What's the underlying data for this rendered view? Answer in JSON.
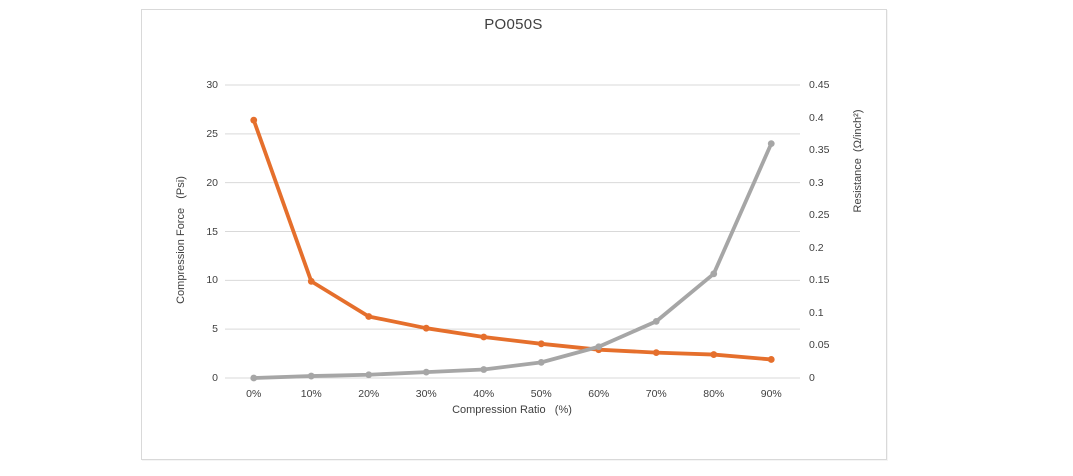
{
  "page": {
    "background": "#FFFFFF"
  },
  "frame": {
    "border_color": "#D9D9D9",
    "background": "#FFFFFF"
  },
  "chart_data": {
    "type": "line",
    "title": "PO050S",
    "categories": [
      "0%",
      "10%",
      "20%",
      "30%",
      "40%",
      "50%",
      "60%",
      "70%",
      "80%",
      "90%"
    ],
    "xlabel": "Compression Ratio   (%)",
    "axes": {
      "left": {
        "label": "Compression Force   (Psi)",
        "min": 0,
        "max": 30,
        "ticks": [
          "0",
          "5",
          "10",
          "15",
          "20",
          "25",
          "30"
        ],
        "tick_values": [
          0,
          5,
          10,
          15,
          20,
          25,
          30
        ]
      },
      "right": {
        "label": "Resistance  (Ω/inch²)",
        "min": 0,
        "max": 0.45,
        "ticks": [
          "0",
          "0.05",
          "0.1",
          "0.15",
          "0.2",
          "0.25",
          "0.3",
          "0.35",
          "0.4",
          "0.45"
        ],
        "tick_values": [
          0,
          0.05,
          0.1,
          0.15,
          0.2,
          0.25,
          0.3,
          0.35,
          0.4,
          0.45
        ]
      }
    },
    "grid": true,
    "legend": false,
    "series": [
      {
        "name": "Compression Force (Psi)",
        "axis": "left",
        "color": "#E56F2C",
        "marker": "circle",
        "values": [
          26.4,
          9.9,
          6.3,
          5.1,
          4.2,
          3.5,
          2.9,
          2.6,
          2.4,
          1.9
        ]
      },
      {
        "name": "Resistance (Ω/inch²)",
        "axis": "right",
        "color": "#A6A6A6",
        "marker": "circle",
        "values": [
          0.0,
          0.003,
          0.005,
          0.009,
          0.013,
          0.024,
          0.048,
          0.087,
          0.16,
          0.36
        ]
      }
    ],
    "colors": {
      "gridline": "#D9D9D9",
      "text": "#404040",
      "title": "#3F3F3F"
    }
  }
}
